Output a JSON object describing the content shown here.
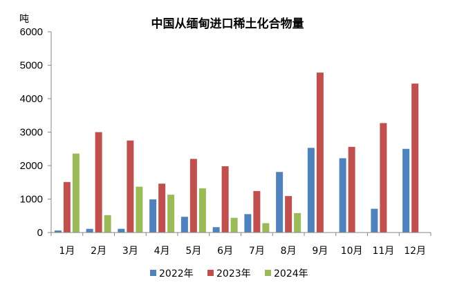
{
  "chart_data": {
    "type": "bar",
    "title": "中国从缅甸进口稀土化合物量",
    "ylabel": "吨",
    "xlabel": "",
    "ylim": [
      0,
      6000
    ],
    "yticks": [
      "0",
      "1000",
      "2000",
      "3000",
      "4000",
      "5000",
      "6000"
    ],
    "grid": false,
    "legend_position": "bottom",
    "categories": [
      "1月",
      "2月",
      "3月",
      "4月",
      "5月",
      "6月",
      "7月",
      "8月",
      "9月",
      "10月",
      "11月",
      "12月"
    ],
    "series": [
      {
        "name": "2022年",
        "color": "#4F81BD",
        "values": [
          60,
          110,
          110,
          990,
          470,
          160,
          550,
          1810,
          2530,
          2220,
          710,
          2500
        ]
      },
      {
        "name": "2023年",
        "color": "#C0504D",
        "values": [
          1510,
          3000,
          2750,
          1460,
          2200,
          1980,
          1240,
          1090,
          4780,
          2560,
          3270,
          4450
        ]
      },
      {
        "name": "2024年",
        "color": "#9BBB59",
        "values": [
          2360,
          520,
          1370,
          1130,
          1320,
          440,
          280,
          580,
          null,
          null,
          null,
          null
        ]
      }
    ]
  }
}
